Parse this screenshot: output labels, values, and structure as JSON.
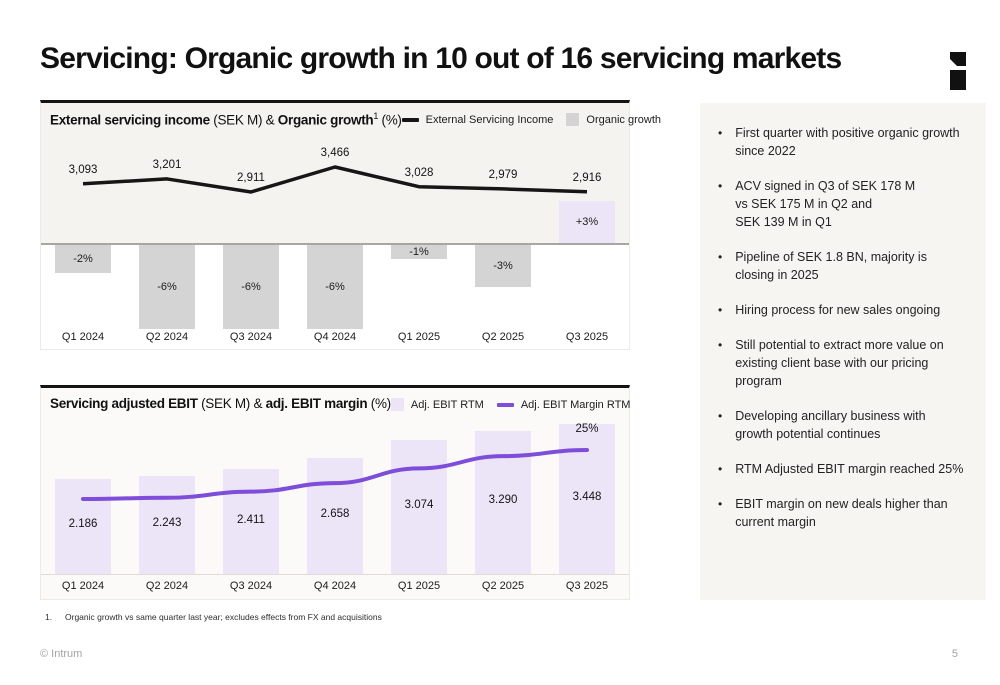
{
  "slide": {
    "title": "Servicing: Organic growth in 10 out of 16 servicing markets",
    "page_number": "5",
    "footer_copyright": "© Intrum",
    "footnote_number": "1.",
    "footnote_text": "Organic growth vs same quarter last year; excludes effects from FX and acquisitions"
  },
  "colors": {
    "line_black": "#161616",
    "bar_gray": "#d4d4d4",
    "lavender": "#ece4f7",
    "purple": "#7e4dd9",
    "chart1_upper_bg": "#f5f3f0",
    "zero_line": "#a8a6a2",
    "axis_line": "#dfdcd7"
  },
  "chart_data": [
    {
      "id": "external-servicing-income",
      "type": "line+bar",
      "header": {
        "bold1": "External servicing income",
        "reg1": " (SEK M) & ",
        "bold2": "Organic growth",
        "sup": "1",
        "reg2": " (%)"
      },
      "legend": [
        {
          "label": "External Servicing Income",
          "swatch": "line",
          "color": "#161616"
        },
        {
          "label": "Organic growth",
          "swatch": "square",
          "color": "#d4d4d4"
        }
      ],
      "categories": [
        "Q1 2024",
        "Q2 2024",
        "Q3 2024",
        "Q4 2024",
        "Q1 2025",
        "Q2 2025",
        "Q3 2025"
      ],
      "series": [
        {
          "name": "External Servicing Income",
          "type": "line",
          "values": [
            3093,
            3201,
            2911,
            3466,
            3028,
            2979,
            2916
          ],
          "labels": [
            "3,093",
            "3,201",
            "2,911",
            "3,466",
            "3,028",
            "2,979",
            "2,916"
          ]
        },
        {
          "name": "Organic growth",
          "type": "bar",
          "values": [
            -2,
            -6,
            -6,
            -6,
            -1,
            -3,
            3
          ],
          "labels": [
            "-2%",
            "-6%",
            "-6%",
            "-6%",
            "-1%",
            "-3%",
            "+3%"
          ]
        }
      ]
    },
    {
      "id": "servicing-adjusted-ebit",
      "type": "bar+line",
      "header": {
        "bold1": "Servicing adjusted EBIT",
        "reg1": " (SEK M) & ",
        "bold2": "adj. EBIT margin",
        "sup": "",
        "reg2": " (%)"
      },
      "legend": [
        {
          "label": "Adj. EBIT RTM",
          "swatch": "square",
          "color": "#ece4f7"
        },
        {
          "label": "Adj. EBIT Margin RTM",
          "swatch": "line",
          "color": "#7e4dd9"
        }
      ],
      "categories": [
        "Q1 2024",
        "Q2 2024",
        "Q3 2024",
        "Q4 2024",
        "Q1 2025",
        "Q2 2025",
        "Q3 2025"
      ],
      "series": [
        {
          "name": "Adj. EBIT RTM",
          "type": "bar",
          "values": [
            2186,
            2243,
            2411,
            2658,
            3074,
            3290,
            3448
          ],
          "labels": [
            "2.186",
            "2.243",
            "2.411",
            "2.658",
            "3.074",
            "3.290",
            "3.448"
          ]
        },
        {
          "name": "Adj. EBIT Margin RTM",
          "type": "line",
          "values": [
            21,
            21.1,
            21.6,
            22.3,
            23.5,
            24.5,
            25
          ],
          "last_label": "25%"
        }
      ]
    }
  ],
  "sidebar": {
    "bullets": [
      {
        "text": "First quarter with positive organic growth since 2022"
      },
      {
        "text": "ACV signed in Q3 of SEK 178 M\nvs SEK 175 M in Q2 and\nSEK 139 M in Q1"
      },
      {
        "text": "Pipeline of SEK 1.8 BN, majority is closing in 2025"
      },
      {
        "text": "Hiring process for new sales ongoing"
      },
      {
        "text": "Still potential to extract more value on existing client base with our pricing program"
      },
      {
        "text": "Developing ancillary business with growth potential continues"
      },
      {
        "text": "RTM Adjusted EBIT margin reached 25%"
      },
      {
        "text": "EBIT margin on new deals higher than current margin"
      }
    ]
  }
}
